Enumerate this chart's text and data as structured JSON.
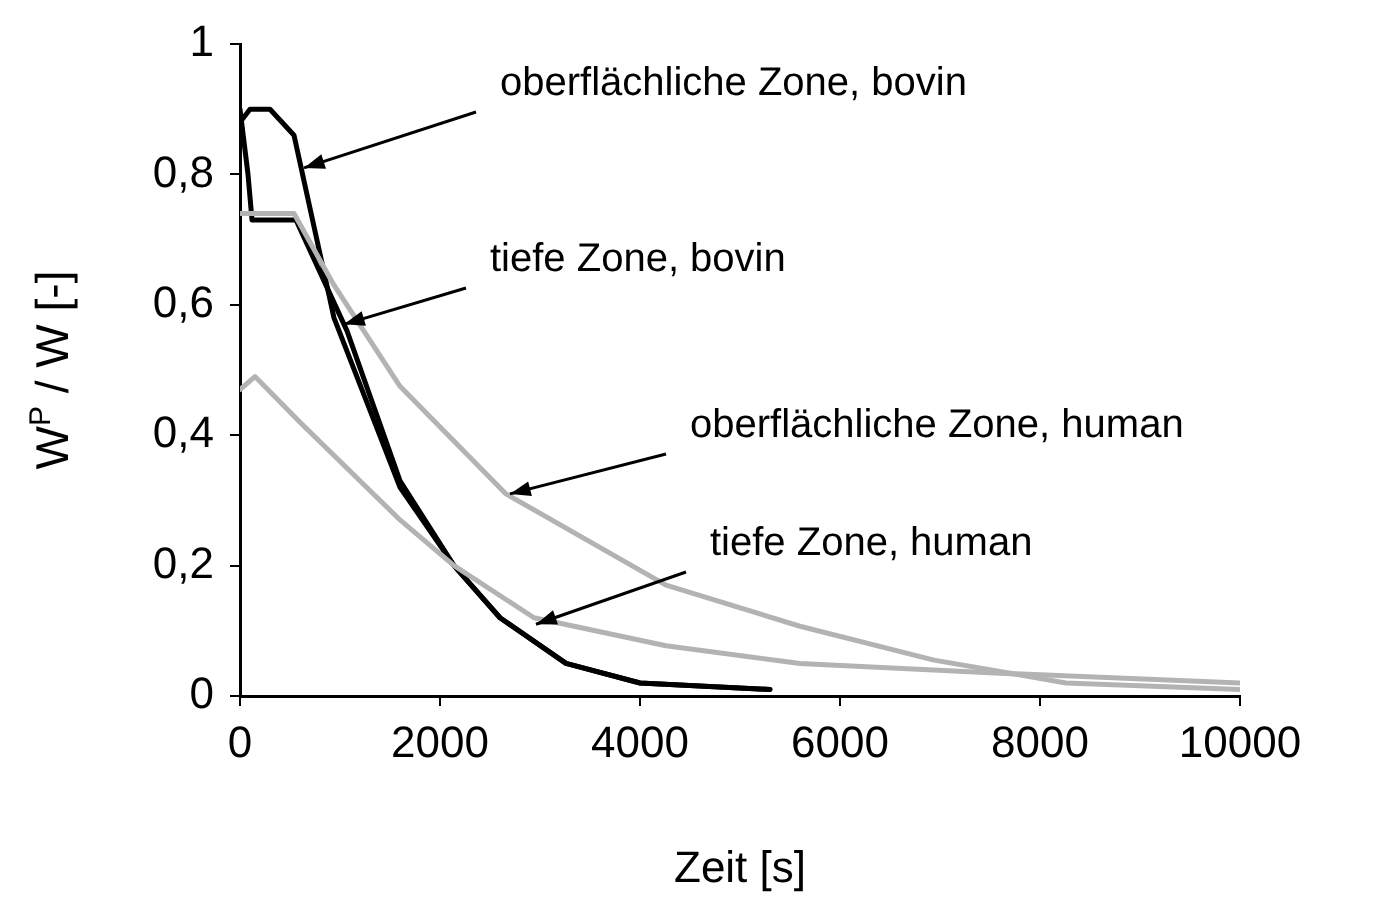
{
  "chart_data": {
    "type": "line",
    "xlabel": "Zeit [s]",
    "ylabel": "W$^{P}$ / W [-]",
    "xlim": [
      0,
      10000
    ],
    "xticks": [
      0,
      2000,
      4000,
      6000,
      8000,
      10000
    ],
    "ylim": [
      0,
      1
    ],
    "yticks": [
      0,
      {
        "value": 0.2,
        "label": "0,2"
      },
      {
        "value": 0.4,
        "label": "0,4"
      },
      {
        "value": 0.6,
        "label": "0,6"
      },
      {
        "value": 0.8,
        "label": "0,8"
      },
      1
    ],
    "marker": "none",
    "line_style": "solid",
    "series": [
      {
        "color": "#b3b3b3",
        "x": [
          0,
          150,
          600,
          1600,
          2140,
          2940,
          4260,
          5600,
          7600,
          10000
        ],
        "values": [
          0.47,
          0.49,
          0.42,
          0.27,
          0.2,
          0.12,
          0.077,
          0.05,
          0.035,
          0.02
        ]
      },
      {
        "color": "#b3b3b3",
        "x": [
          0,
          540,
          940,
          1600,
          2660,
          4260,
          5600,
          6940,
          8260,
          10000
        ],
        "values": [
          0.74,
          0.74,
          0.63,
          0.475,
          0.31,
          0.17,
          0.107,
          0.055,
          0.02,
          0.01
        ]
      },
      {
        "color": "#000000",
        "x": [
          0,
          80,
          120,
          560,
          1070,
          1600,
          2140,
          2600,
          3260,
          4000,
          5300
        ],
        "values": [
          0.9,
          0.8,
          0.73,
          0.73,
          0.56,
          0.33,
          0.2,
          0.12,
          0.05,
          0.02,
          0.01
        ]
      },
      {
        "color": "#000000",
        "x": [
          0,
          100,
          300,
          540,
          940,
          1600,
          2140,
          2600,
          3260,
          4000,
          5300
        ],
        "values": [
          0.88,
          0.9,
          0.9,
          0.86,
          0.58,
          0.32,
          0.2,
          0.12,
          0.05,
          0.02,
          0.01
        ]
      }
    ],
    "annotations": [
      {
        "text": "oberflächliche Zone, bovin",
        "x": 640,
        "y": 0.81
      },
      {
        "text": "tiefe Zone, bovin",
        "x": 1040,
        "y": 0.57
      },
      {
        "text": "oberflächliche Zone, human",
        "x": 2700,
        "y": 0.31
      },
      {
        "text": "tiefe Zone, human",
        "x": 2960,
        "y": 0.11
      }
    ]
  }
}
